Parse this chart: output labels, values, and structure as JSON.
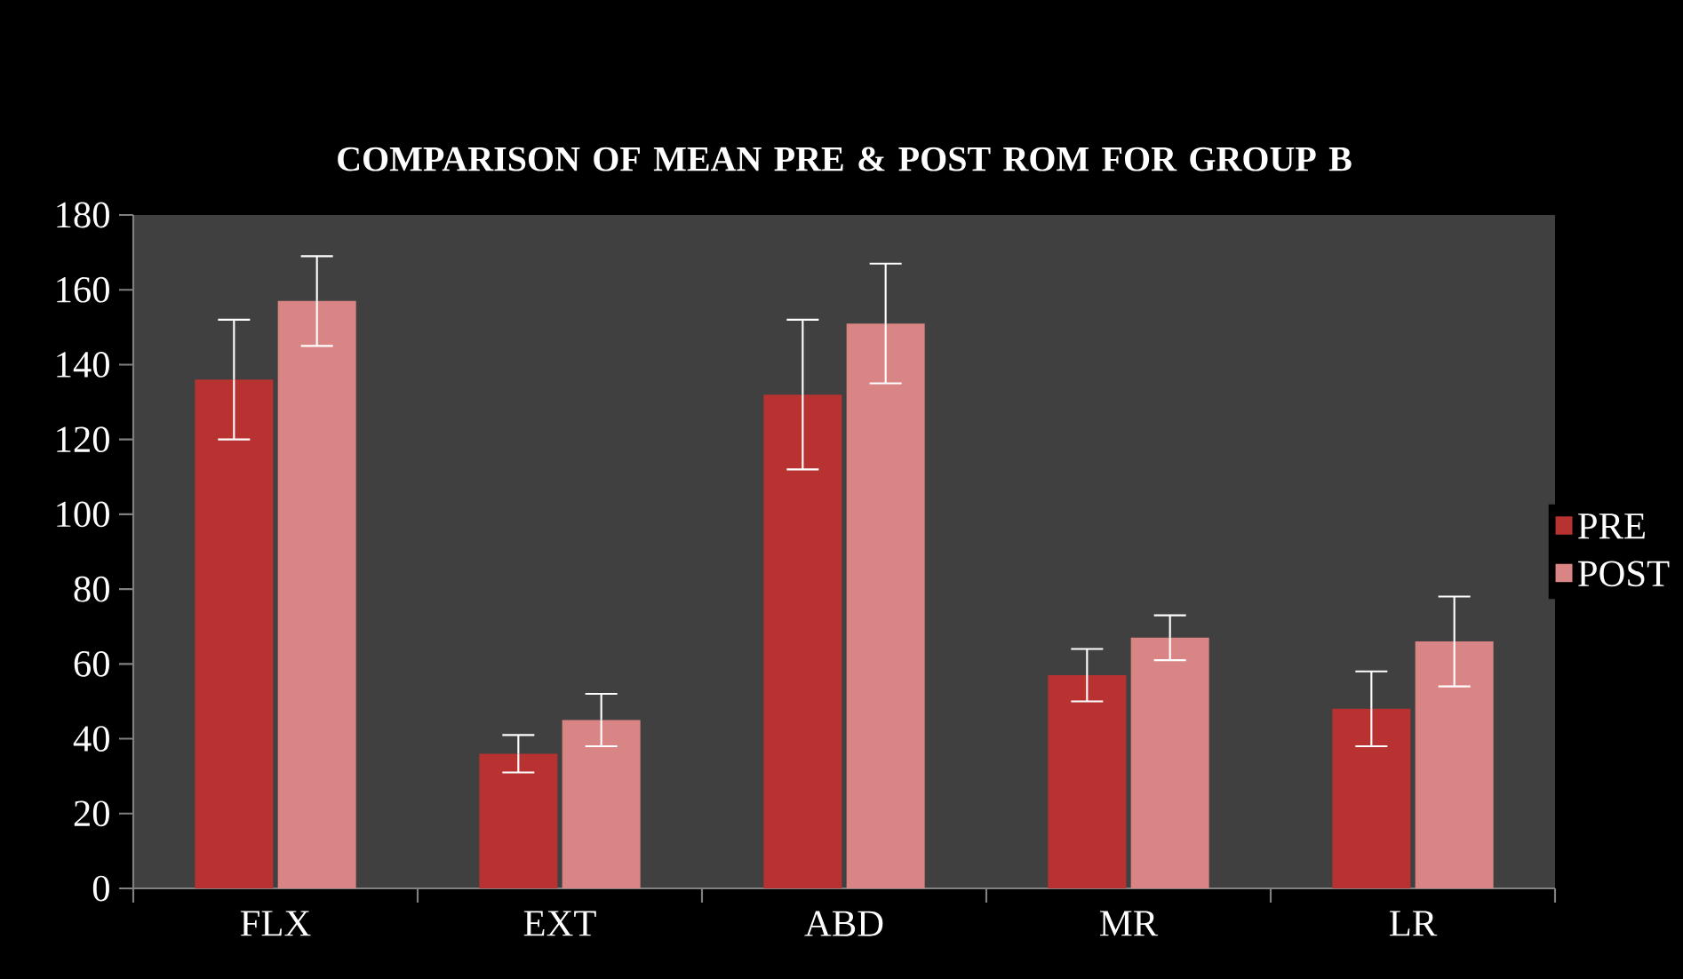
{
  "chart_data": {
    "type": "bar",
    "title": "COMPARISON  OF MEAN PRE & POST ROM FOR GROUP B",
    "categories": [
      "FLX",
      "EXT",
      "ABD",
      "MR",
      "LR"
    ],
    "series": [
      {
        "name": "PRE",
        "color": "#b83232",
        "values": [
          136,
          36,
          132,
          57,
          48
        ],
        "errors": [
          16,
          5,
          20,
          7,
          10
        ]
      },
      {
        "name": "POST",
        "color": "#d98585",
        "values": [
          157,
          45,
          151,
          67,
          66
        ],
        "errors": [
          12,
          7,
          16,
          6,
          12
        ]
      }
    ],
    "ylim": [
      0,
      180
    ],
    "yticks": [
      0,
      20,
      40,
      60,
      80,
      100,
      120,
      140,
      160,
      180
    ],
    "grid": false,
    "legend": "right"
  }
}
